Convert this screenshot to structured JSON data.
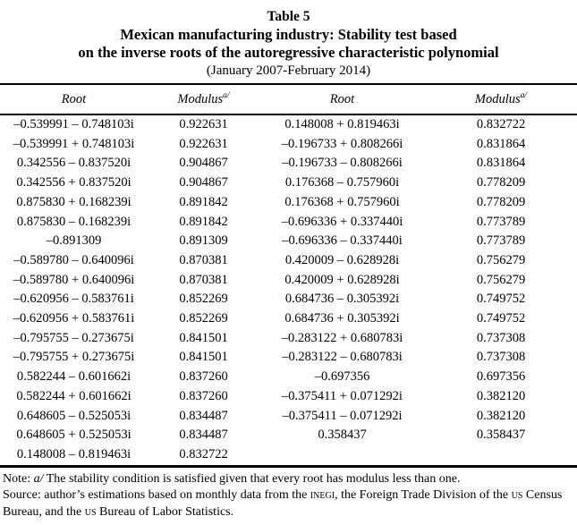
{
  "page": {
    "background": "#ffffff",
    "text_color": "#000000"
  },
  "title": {
    "number": "Table 5",
    "line1": "Mexican manufacturing industry: Stability test based",
    "line2": "on the inverse roots of the autoregressive characteristic polynomial",
    "subtitle": "(January 2007-February 2014)"
  },
  "columns": [
    {
      "label": "Root",
      "sup": ""
    },
    {
      "label": "Modulus",
      "sup": "a/"
    },
    {
      "label": "Root",
      "sup": ""
    },
    {
      "label": "Modulus",
      "sup": "a/"
    }
  ],
  "rows": [
    [
      "–0.539991 – 0.748103i",
      "0.922631",
      "0.148008 + 0.819463i",
      "0.832722"
    ],
    [
      "–0.539991 + 0.748103i",
      "0.922631",
      "–0.196733 + 0.808266i",
      "0.831864"
    ],
    [
      "0.342556 – 0.837520i",
      "0.904867",
      "–0.196733 – 0.808266i",
      "0.831864"
    ],
    [
      "0.342556 + 0.837520i",
      "0.904867",
      "0.176368 – 0.757960i",
      "0.778209"
    ],
    [
      "0.875830 + 0.168239i",
      "0.891842",
      "0.176368 + 0.757960i",
      "0.778209"
    ],
    [
      "0.875830 – 0.168239i",
      "0.891842",
      "–0.696336 + 0.337440i",
      "0.773789"
    ],
    [
      "–0.891309",
      "0.891309",
      "–0.696336 – 0.337440i",
      "0.773789"
    ],
    [
      "–0.589780 – 0.640096i",
      "0.870381",
      "0.420009 – 0.628928i",
      "0.756279"
    ],
    [
      "–0.589780 + 0.640096i",
      "0.870381",
      "0.420009 + 0.628928i",
      "0.756279"
    ],
    [
      "–0.620956 – 0.583761i",
      "0.852269",
      "0.684736 – 0.305392i",
      "0.749752"
    ],
    [
      "–0.620956 + 0.583761i",
      "0.852269",
      "0.684736 + 0.305392i",
      "0.749752"
    ],
    [
      "–0.795755 – 0.273675i",
      "0.841501",
      "–0.283122 + 0.680783i",
      "0.737308"
    ],
    [
      "–0.795755 + 0.273675i",
      "0.841501",
      "–0.283122 – 0.680783i",
      "0.737308"
    ],
    [
      "0.582244 – 0.601662i",
      "0.837260",
      "–0.697356",
      "0.697356"
    ],
    [
      "0.582244 + 0.601662i",
      "0.837260",
      "–0.375411 + 0.071292i",
      "0.382120"
    ],
    [
      "0.648605 – 0.525053i",
      "0.834487",
      "–0.375411 – 0.071292i",
      "0.382120"
    ],
    [
      "0.648605 + 0.525053i",
      "0.834487",
      "0.358437",
      "0.358437"
    ],
    [
      "0.148008 – 0.819463i",
      "0.832722",
      "",
      ""
    ]
  ],
  "chart_data": {
    "type": "table",
    "title": "Mexican manufacturing industry: Stability test based on the inverse roots of the autoregressive characteristic polynomial (January 2007-February 2014)",
    "columns": [
      "Root",
      "Modulus a/",
      "Root",
      "Modulus a/"
    ]
  },
  "notes": {
    "note_prefix": "Note: ",
    "note_marker": "a/",
    "note_text": " The stability condition is satisfied given that every root has modulus less than one.",
    "source": {
      "p1": "Source: author’s estimations based on monthly data from the ",
      "sc1": "INEGI",
      "p2": ", the Foreign Trade Division of the ",
      "sc2": "US",
      "p3": " Census Bureau, and the ",
      "sc3": "US",
      "p4": " Bureau of Labor Statistics."
    }
  }
}
